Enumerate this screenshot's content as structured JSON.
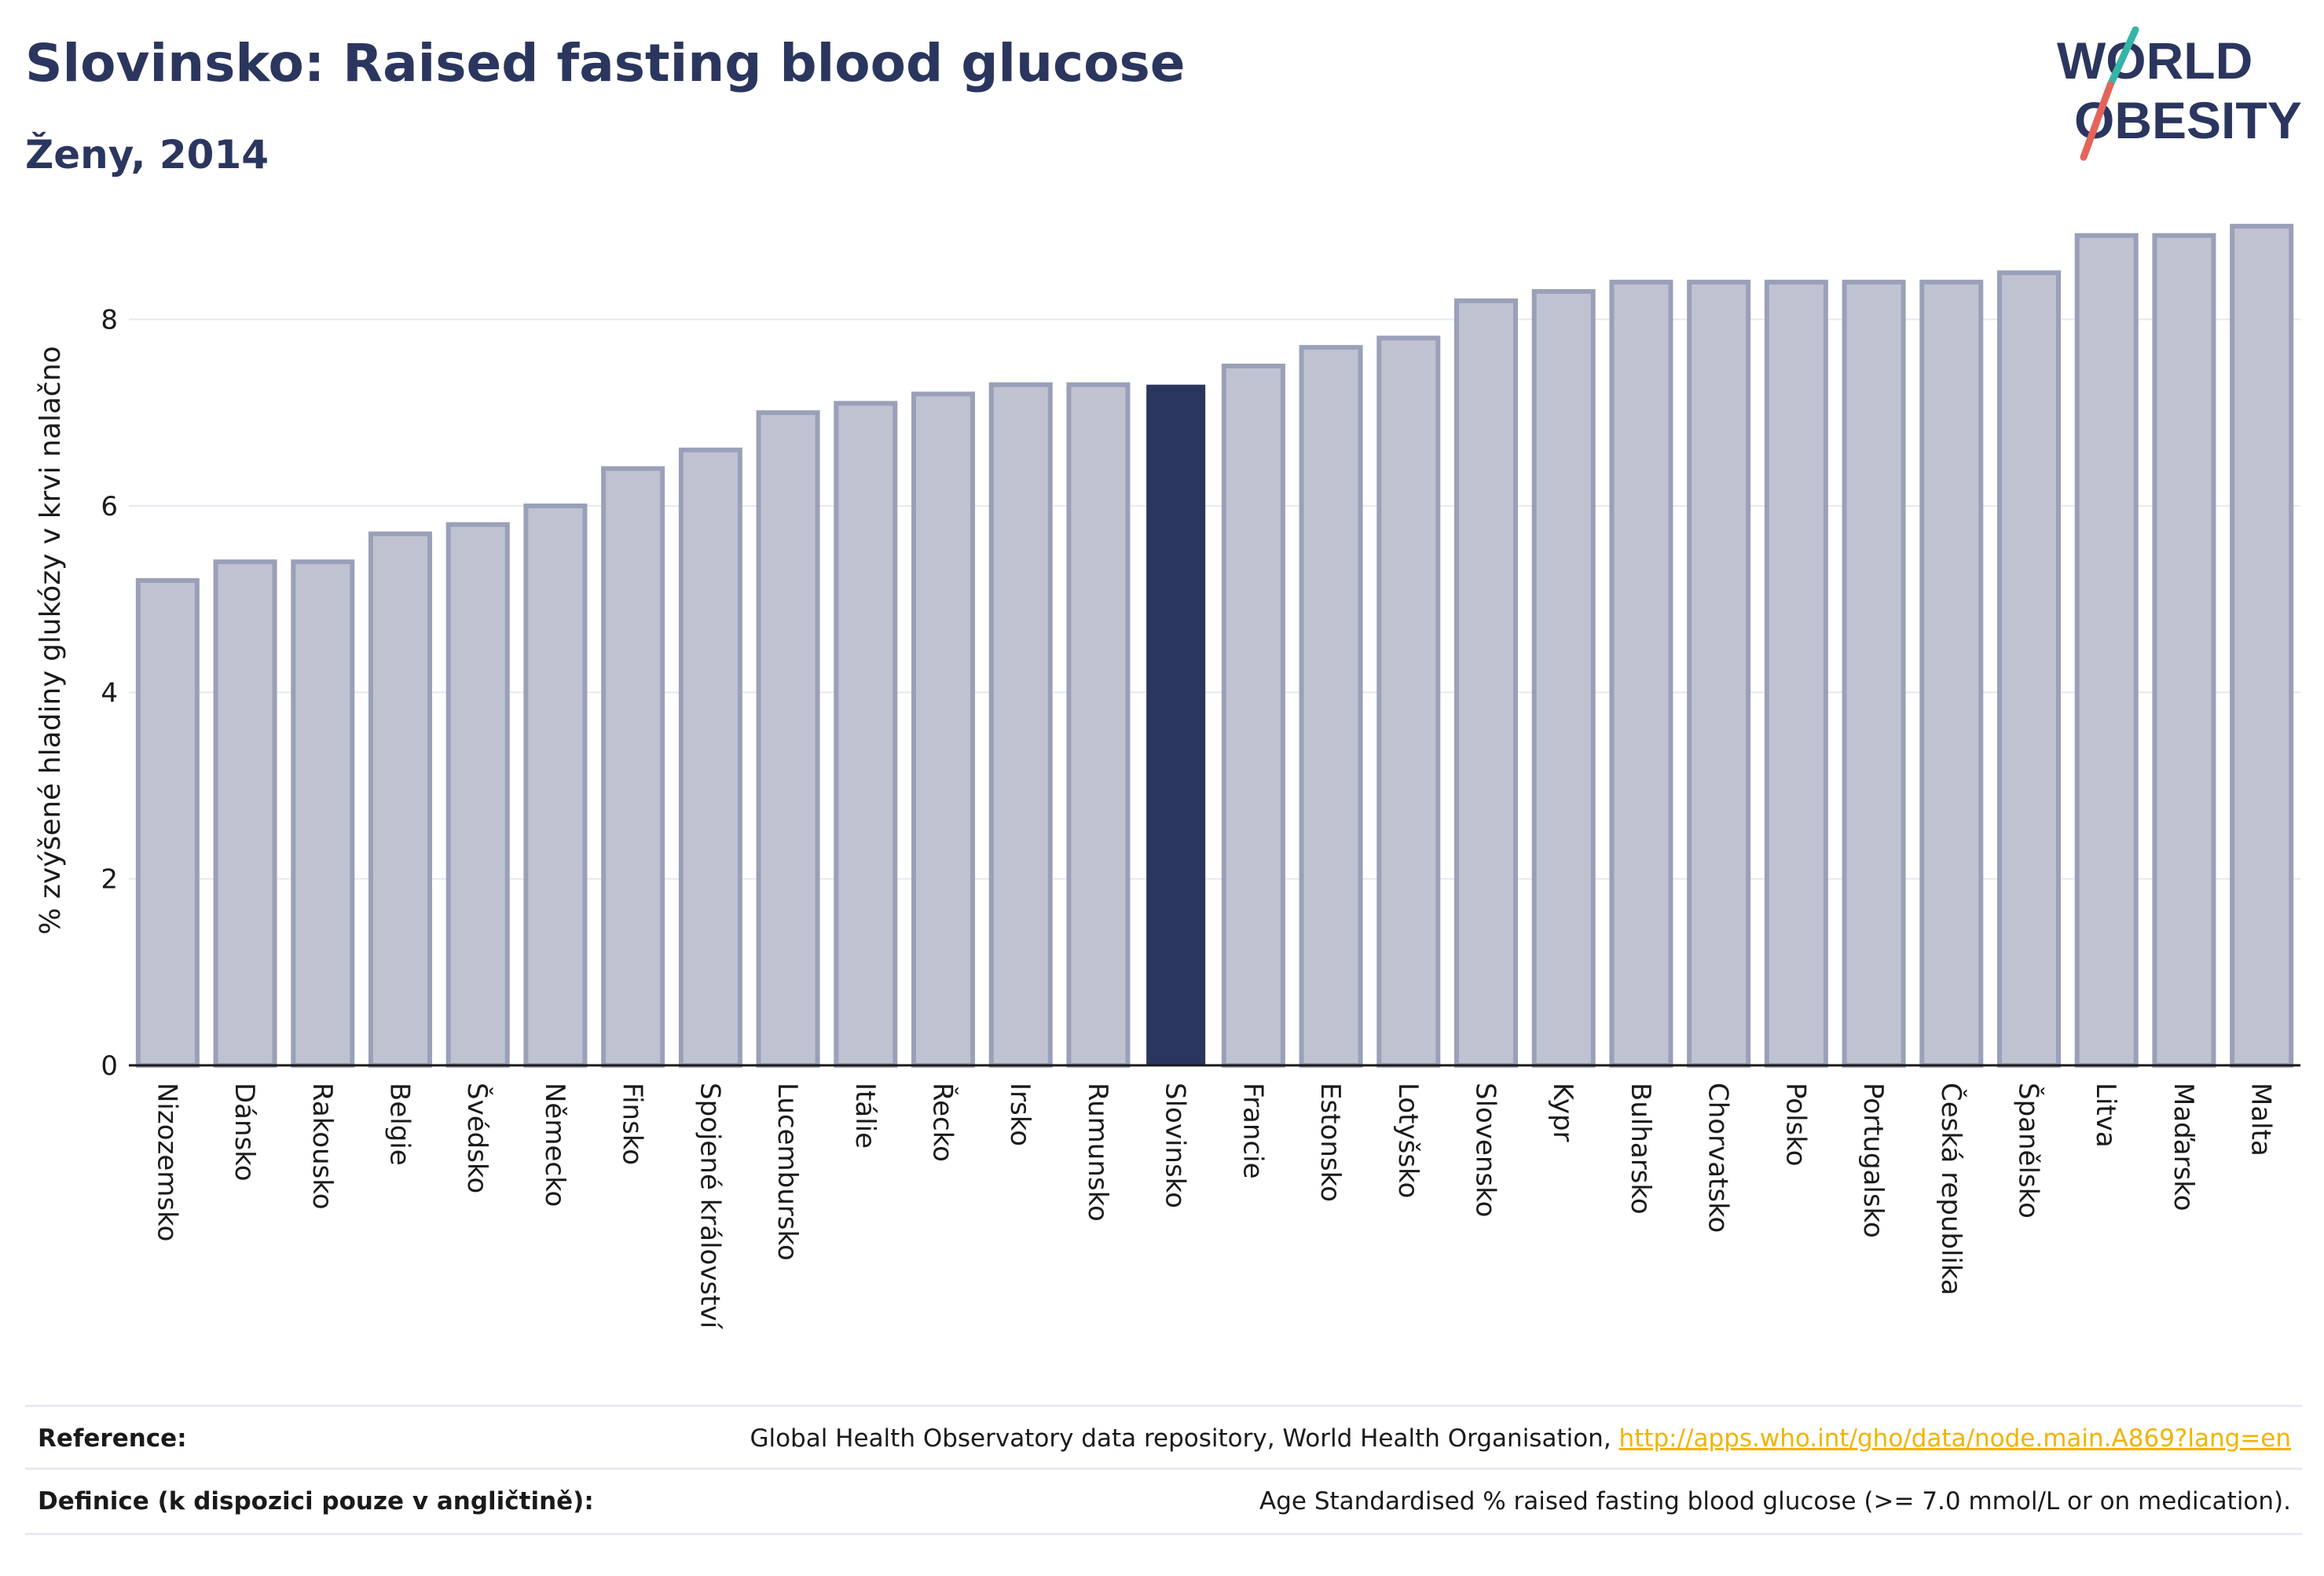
{
  "header": {
    "title": "Slovinsko: Raised fasting blood glucose",
    "subtitle": "Ženy, 2014"
  },
  "logo": {
    "line1": "WORLD",
    "line2": "OBESITY",
    "accent_teal": "#35b5a8",
    "accent_red": "#e5645a"
  },
  "colors": {
    "bar": "#bfc3d1",
    "bar_edge": "#9aa0b8",
    "highlight": "#2b365f",
    "grid": "#e6e8ef",
    "axis": "#1a1a1a"
  },
  "chart_data": {
    "type": "bar",
    "categories": [
      "Nizozemsko",
      "Dánsko",
      "Rakousko",
      "Belgie",
      "Švédsko",
      "Německo",
      "Finsko",
      "Spojené království",
      "Lucembursko",
      "Itálie",
      "Řecko",
      "Irsko",
      "Rumunsko",
      "Slovinsko",
      "Francie",
      "Estonsko",
      "Lotyšsko",
      "Slovensko",
      "Kypr",
      "Bulharsko",
      "Chorvatsko",
      "Polsko",
      "Portugalsko",
      "Česká republika",
      "Španělsko",
      "Litva",
      "Maďarsko",
      "Malta"
    ],
    "values": [
      5.2,
      5.4,
      5.4,
      5.7,
      5.8,
      6.0,
      6.4,
      6.6,
      7.0,
      7.1,
      7.2,
      7.3,
      7.3,
      7.3,
      7.5,
      7.7,
      7.8,
      8.2,
      8.3,
      8.4,
      8.4,
      8.4,
      8.4,
      8.4,
      8.5,
      8.9,
      8.9,
      9.0
    ],
    "highlight": "Slovinsko",
    "ylabel": "% zvýšené hladiny glukózy v krvi nalačno",
    "ylim": [
      0,
      9.1
    ],
    "yticks": [
      0,
      2,
      4,
      6,
      8
    ],
    "grid": true
  },
  "reference": {
    "label": "Reference:",
    "text": "Global Health Observatory data repository, World Health Organisation, ",
    "link": "http://apps.who.int/gho/data/node.main.A869?lang=en"
  },
  "definition": {
    "label": "Definice (k dispozici pouze v angličtině):",
    "text": "Age Standardised % raised fasting blood glucose (>= 7.0 mmol/L or on medication)."
  }
}
